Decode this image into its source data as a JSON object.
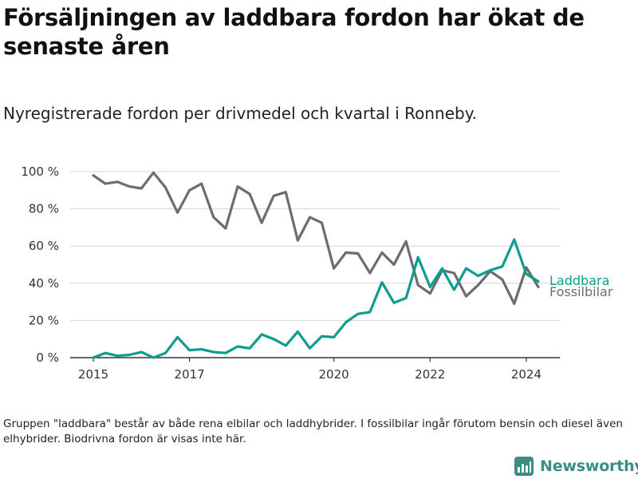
{
  "header": {
    "title": "Försäljningen av laddbara fordon har ökat de senaste åren",
    "subtitle": "Nyregistrerade fordon per drivmedel och kvartal i Ronneby."
  },
  "footnote": "Gruppen \"laddbara\" består av både rena elbilar och laddhybrider. I fossilbilar ingår förutom bensin och diesel även elhybrider. Biodrivna fordon är visas inte här.",
  "brand": {
    "name": "Newsworthy",
    "icon": "newsworthy-logo-icon",
    "color": "#3a8c84"
  },
  "chart_data": {
    "type": "line",
    "title": "Nyregistrerade fordon per drivmedel och kvartal i Ronneby",
    "xlabel": "",
    "ylabel": "",
    "x_start": 2015,
    "x_step": 0.25,
    "xlim": [
      2015,
      2024.25
    ],
    "ylim": [
      0,
      100
    ],
    "x_ticks": [
      2015,
      2017,
      2020,
      2022,
      2024
    ],
    "x_tick_labels": [
      "2015",
      "2017",
      "2020",
      "2022",
      "2024"
    ],
    "y_ticks": [
      0,
      20,
      40,
      60,
      80,
      100
    ],
    "y_tick_labels": [
      "0 %",
      "20 %",
      "40 %",
      "60 %",
      "80 %",
      "100 %"
    ],
    "grid": true,
    "series": [
      {
        "name": "Laddbara",
        "color": "#0d9d8e",
        "values": [
          0,
          2.5,
          1,
          1.5,
          3,
          0,
          2.5,
          11,
          4,
          4.5,
          3,
          2.5,
          6,
          5,
          12.5,
          10,
          6.5,
          14,
          5,
          11.5,
          11,
          19,
          23.5,
          24.5,
          40.5,
          29.5,
          32,
          54,
          38,
          48,
          36.5,
          48,
          44,
          47,
          49,
          63.5,
          45,
          41
        ]
      },
      {
        "name": "Fossilbilar",
        "color": "#6c6c72",
        "values": [
          98,
          93.5,
          94.5,
          92,
          91,
          99.5,
          91.5,
          78,
          90,
          93.5,
          75.5,
          69.5,
          92,
          88,
          72.5,
          87,
          89,
          63,
          75.5,
          72.5,
          48,
          56.5,
          56,
          45.5,
          56.5,
          50,
          62.5,
          39,
          34.5,
          47,
          45.5,
          33,
          39,
          46.5,
          42,
          29,
          48.5,
          38
        ]
      }
    ]
  }
}
